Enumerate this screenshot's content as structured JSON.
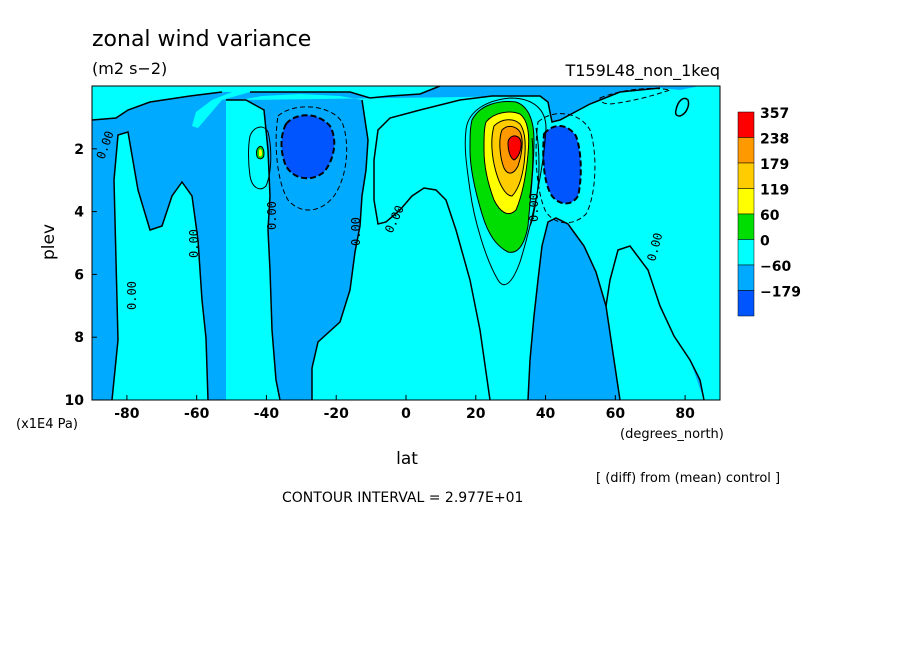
{
  "chart_data": {
    "type": "contour",
    "title": "zonal wind variance",
    "units": "(m2 s−2)",
    "experiment": "T159L48_non_1keq",
    "xlabel": "lat",
    "x_units": "(degrees_north)",
    "ylabel": "plev",
    "y_units": "(x1E4 Pa)",
    "xlim": [
      -90,
      90
    ],
    "ylim": [
      10,
      0
    ],
    "x_ticks": [
      -80,
      -60,
      -40,
      -20,
      0,
      20,
      40,
      60,
      80
    ],
    "y_ticks": [
      2,
      4,
      6,
      8,
      10
    ],
    "contour_interval_text": "CONTOUR INTERVAL = 2.977E+01",
    "note": "[ (diff) from (mean) control ]",
    "contour_label": "0.00",
    "legend": {
      "levels": [
        357,
        238,
        179,
        119,
        60,
        0,
        -60,
        -179
      ],
      "colors": [
        "#ff0000",
        "#ff9900",
        "#ffcc00",
        "#ffff00",
        "#00dd00",
        "#00ffff",
        "#00aaff",
        "#0055ff"
      ]
    },
    "field_colors": {
      "negative": "#00aaff",
      "weak_positive": "#00ffff",
      "strong_negative": "#0055ff",
      "positive_60": "#00dd00",
      "positive_119": "#ffff00",
      "positive_179": "#ffcc00",
      "positive_238": "#ff9900",
      "positive_357": "#ff0000"
    },
    "features": [
      {
        "name": "northern jet maximum",
        "lat": 31,
        "plev": 2.0,
        "value": 357
      },
      {
        "name": "southern negative minimum",
        "lat": -30,
        "plev": 2.0,
        "value": -179
      },
      {
        "name": "northern negative minimum",
        "lat": 45,
        "plev": 2.4,
        "value": -179
      },
      {
        "name": "southern small positive",
        "lat": -42,
        "plev": 2.2,
        "value": 60
      }
    ]
  }
}
